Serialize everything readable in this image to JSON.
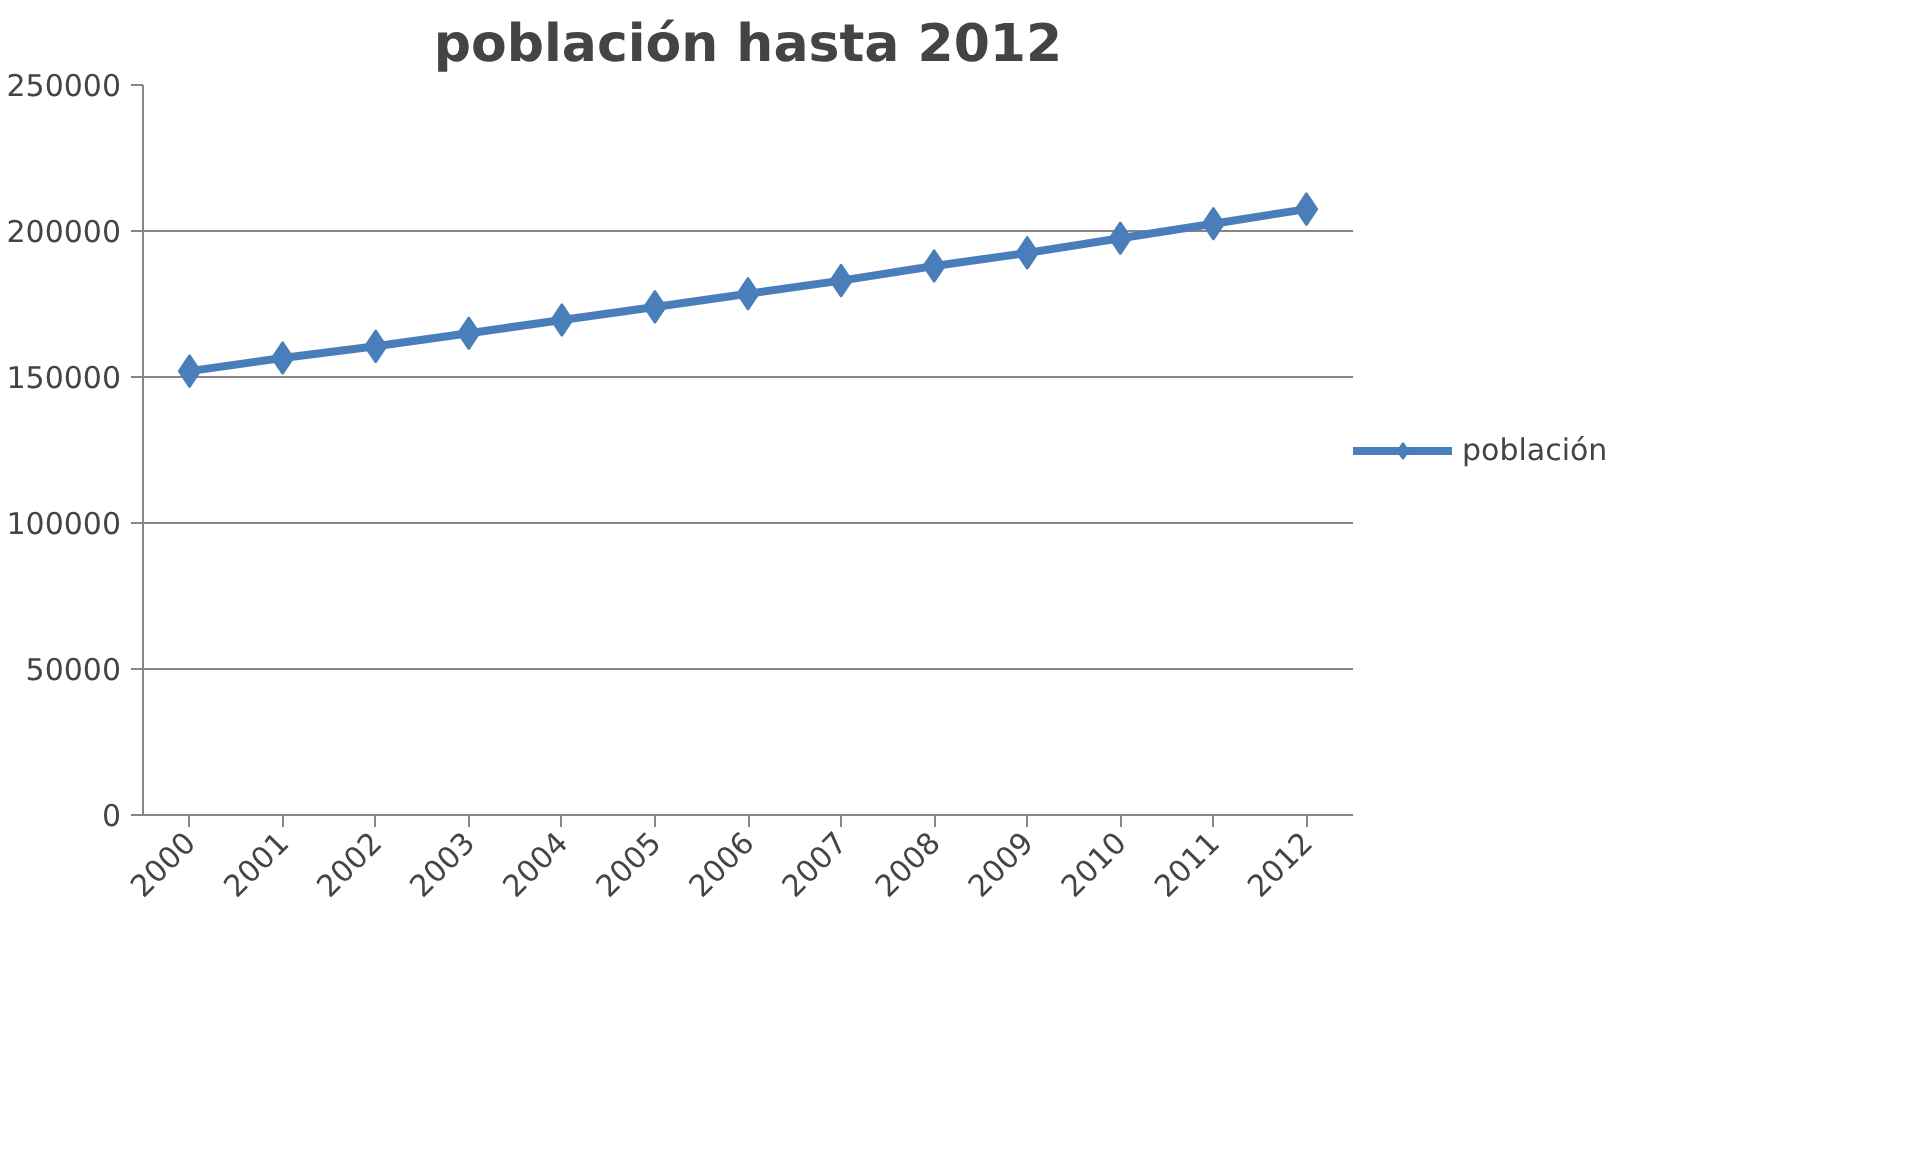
{
  "chart_data": {
    "type": "line",
    "title": "población hasta 2012",
    "categories": [
      "2000",
      "2001",
      "2002",
      "2003",
      "2004",
      "2005",
      "2006",
      "2007",
      "2008",
      "2009",
      "2010",
      "2011",
      "2012"
    ],
    "series": [
      {
        "name": "población",
        "color": "#4a7ebb",
        "values": [
          152000,
          156500,
          160500,
          165000,
          169500,
          174000,
          178500,
          183000,
          188000,
          192500,
          197500,
          202500,
          207500
        ]
      }
    ],
    "ylim": [
      0,
      250000
    ],
    "yticks": [
      0,
      50000,
      100000,
      150000,
      200000,
      250000
    ],
    "grid": "y",
    "legend": "right",
    "marker": "diamond",
    "line_style": "solid"
  }
}
